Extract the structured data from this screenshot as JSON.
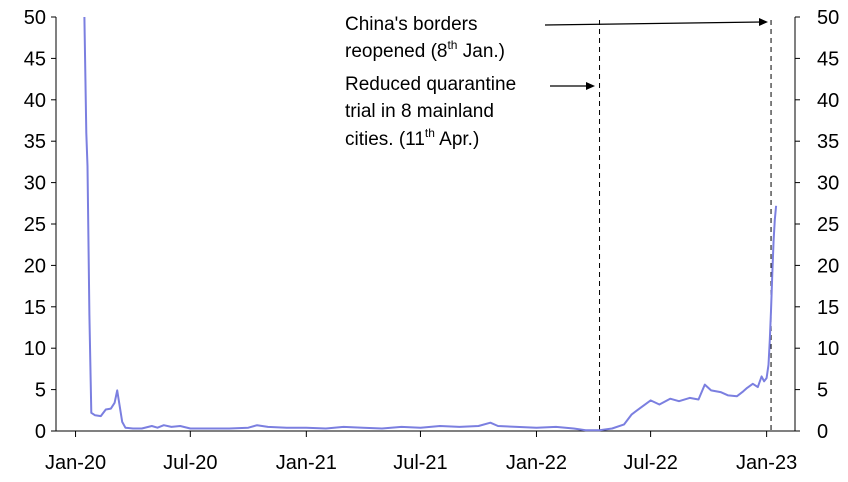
{
  "chart_data": {
    "type": "line",
    "title": "",
    "xlabel": "",
    "ylabel": "",
    "ylim": [
      0,
      50
    ],
    "y_ticks": [
      "0",
      "5",
      "10",
      "15",
      "20",
      "25",
      "30",
      "35",
      "40",
      "45",
      "50"
    ],
    "x_ticks": [
      "Jan-20",
      "Jul-20",
      "Jan-21",
      "Jul-21",
      "Jan-22",
      "Jul-22",
      "Jan-23"
    ],
    "grid": false,
    "legend": "none",
    "dual_axis": "left and right share same 0-50 scale",
    "series": [
      {
        "color": "#7b7fe0",
        "points": [
          [
            "2020-01-15",
            50
          ],
          [
            "2020-01-18",
            36
          ],
          [
            "2020-01-20",
            32
          ],
          [
            "2020-01-23",
            14
          ],
          [
            "2020-01-26",
            2.2
          ],
          [
            "2020-02-01",
            1.9
          ],
          [
            "2020-02-10",
            1.8
          ],
          [
            "2020-02-18",
            2.6
          ],
          [
            "2020-02-26",
            2.7
          ],
          [
            "2020-03-03",
            3.4
          ],
          [
            "2020-03-07",
            4.9
          ],
          [
            "2020-03-11",
            3.0
          ],
          [
            "2020-03-15",
            1.1
          ],
          [
            "2020-03-20",
            0.4
          ],
          [
            "2020-04-01",
            0.3
          ],
          [
            "2020-04-15",
            0.3
          ],
          [
            "2020-05-01",
            0.6
          ],
          [
            "2020-05-10",
            0.4
          ],
          [
            "2020-05-20",
            0.7
          ],
          [
            "2020-06-01",
            0.5
          ],
          [
            "2020-06-15",
            0.6
          ],
          [
            "2020-07-01",
            0.3
          ],
          [
            "2020-08-01",
            0.3
          ],
          [
            "2020-09-01",
            0.3
          ],
          [
            "2020-10-01",
            0.4
          ],
          [
            "2020-10-15",
            0.7
          ],
          [
            "2020-11-01",
            0.5
          ],
          [
            "2020-12-01",
            0.4
          ],
          [
            "2021-01-01",
            0.4
          ],
          [
            "2021-02-01",
            0.3
          ],
          [
            "2021-03-01",
            0.5
          ],
          [
            "2021-04-01",
            0.4
          ],
          [
            "2021-05-01",
            0.3
          ],
          [
            "2021-06-01",
            0.5
          ],
          [
            "2021-07-01",
            0.4
          ],
          [
            "2021-08-01",
            0.6
          ],
          [
            "2021-09-01",
            0.5
          ],
          [
            "2021-10-01",
            0.6
          ],
          [
            "2021-10-20",
            1.0
          ],
          [
            "2021-11-01",
            0.6
          ],
          [
            "2021-12-01",
            0.5
          ],
          [
            "2022-01-01",
            0.4
          ],
          [
            "2022-02-01",
            0.5
          ],
          [
            "2022-03-01",
            0.3
          ],
          [
            "2022-03-20",
            0.1
          ],
          [
            "2022-04-11",
            0.1
          ],
          [
            "2022-05-01",
            0.3
          ],
          [
            "2022-05-20",
            0.8
          ],
          [
            "2022-06-01",
            2.0
          ],
          [
            "2022-06-15",
            2.8
          ],
          [
            "2022-07-01",
            3.7
          ],
          [
            "2022-07-15",
            3.2
          ],
          [
            "2022-08-01",
            3.9
          ],
          [
            "2022-08-15",
            3.6
          ],
          [
            "2022-09-01",
            4.0
          ],
          [
            "2022-09-15",
            3.8
          ],
          [
            "2022-09-25",
            5.6
          ],
          [
            "2022-10-05",
            4.9
          ],
          [
            "2022-10-20",
            4.7
          ],
          [
            "2022-11-01",
            4.3
          ],
          [
            "2022-11-15",
            4.2
          ],
          [
            "2022-11-25",
            4.8
          ],
          [
            "2022-12-01",
            5.2
          ],
          [
            "2022-12-10",
            5.7
          ],
          [
            "2022-12-18",
            5.3
          ],
          [
            "2022-12-24",
            6.6
          ],
          [
            "2022-12-28",
            6.0
          ],
          [
            "2023-01-01",
            6.4
          ],
          [
            "2023-01-04",
            8.0
          ],
          [
            "2023-01-06",
            11.0
          ],
          [
            "2023-01-08",
            14.5
          ],
          [
            "2023-01-10",
            19.0
          ],
          [
            "2023-01-12",
            23.0
          ],
          [
            "2023-01-14",
            25.5
          ],
          [
            "2023-01-16",
            27.2
          ]
        ]
      }
    ],
    "vlines": [
      {
        "x": "2022-04-11"
      },
      {
        "x": "2023-01-08"
      }
    ],
    "annotations": [
      {
        "lines": [
          "China's borders",
          "reopened (8",
          "th",
          " Jan.)"
        ]
      },
      {
        "lines": [
          "Reduced quarantine",
          "trial in 8 mainland",
          "cities. (11",
          "th",
          " Apr.)"
        ]
      }
    ]
  }
}
